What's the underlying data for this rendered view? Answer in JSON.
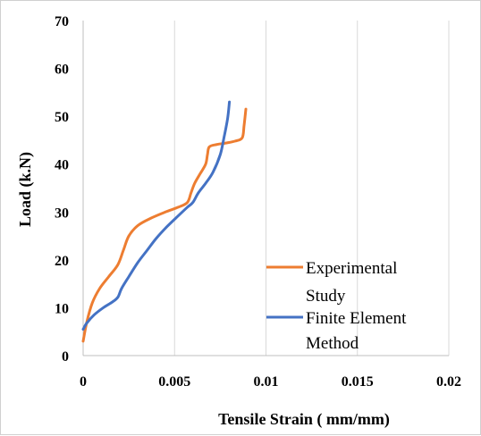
{
  "chart_data": {
    "type": "line",
    "title": "",
    "xlabel": "Tensile Strain ( mm/mm)",
    "ylabel": "Load (k.N)",
    "xlim": [
      0,
      0.02
    ],
    "ylim": [
      0,
      70
    ],
    "x_ticks": [
      "0",
      "0.005",
      "0.01",
      "0.015",
      "0.02"
    ],
    "y_ticks": [
      "0",
      "10",
      "20",
      "30",
      "40",
      "50",
      "60",
      "70"
    ],
    "grid": "vertical",
    "legend_position": "bottom-right inside",
    "legend": {
      "exp_line1": "Experimental",
      "exp_line2": "Study",
      "fem_line1": "Finite Element",
      "fem_line2": "Method"
    },
    "series": [
      {
        "key": "experimental",
        "color": "#ED7D31",
        "points": [
          [
            0,
            3
          ],
          [
            0.0002,
            7
          ],
          [
            0.0005,
            11
          ],
          [
            0.0009,
            14
          ],
          [
            0.0014,
            16.5
          ],
          [
            0.0019,
            19
          ],
          [
            0.0022,
            22
          ],
          [
            0.0025,
            25
          ],
          [
            0.003,
            27.2
          ],
          [
            0.0037,
            28.7
          ],
          [
            0.0045,
            30
          ],
          [
            0.0052,
            31
          ],
          [
            0.0057,
            32
          ],
          [
            0.0059,
            34
          ],
          [
            0.0061,
            36
          ],
          [
            0.0064,
            38
          ],
          [
            0.0067,
            40
          ],
          [
            0.0068,
            42
          ],
          [
            0.0069,
            43.6
          ],
          [
            0.0073,
            44.1
          ],
          [
            0.0078,
            44.4
          ],
          [
            0.0083,
            44.8
          ],
          [
            0.0087,
            45.5
          ],
          [
            0.0088,
            48
          ],
          [
            0.0089,
            51.5
          ]
        ]
      },
      {
        "key": "fem",
        "color": "#4472C4",
        "points": [
          [
            0,
            5.5
          ],
          [
            0.0002,
            6.8
          ],
          [
            0.0006,
            8.5
          ],
          [
            0.0011,
            10
          ],
          [
            0.0016,
            11.2
          ],
          [
            0.0019,
            12.2
          ],
          [
            0.0021,
            14
          ],
          [
            0.0025,
            16.5
          ],
          [
            0.003,
            19.5
          ],
          [
            0.0035,
            22
          ],
          [
            0.004,
            24.5
          ],
          [
            0.0046,
            27
          ],
          [
            0.0052,
            29.2
          ],
          [
            0.0057,
            31
          ],
          [
            0.006,
            32
          ],
          [
            0.0063,
            34
          ],
          [
            0.0067,
            36
          ],
          [
            0.0071,
            38.3
          ],
          [
            0.0075,
            42
          ],
          [
            0.0077,
            45.5
          ],
          [
            0.0079,
            49.5
          ],
          [
            0.008,
            53
          ]
        ]
      }
    ]
  }
}
